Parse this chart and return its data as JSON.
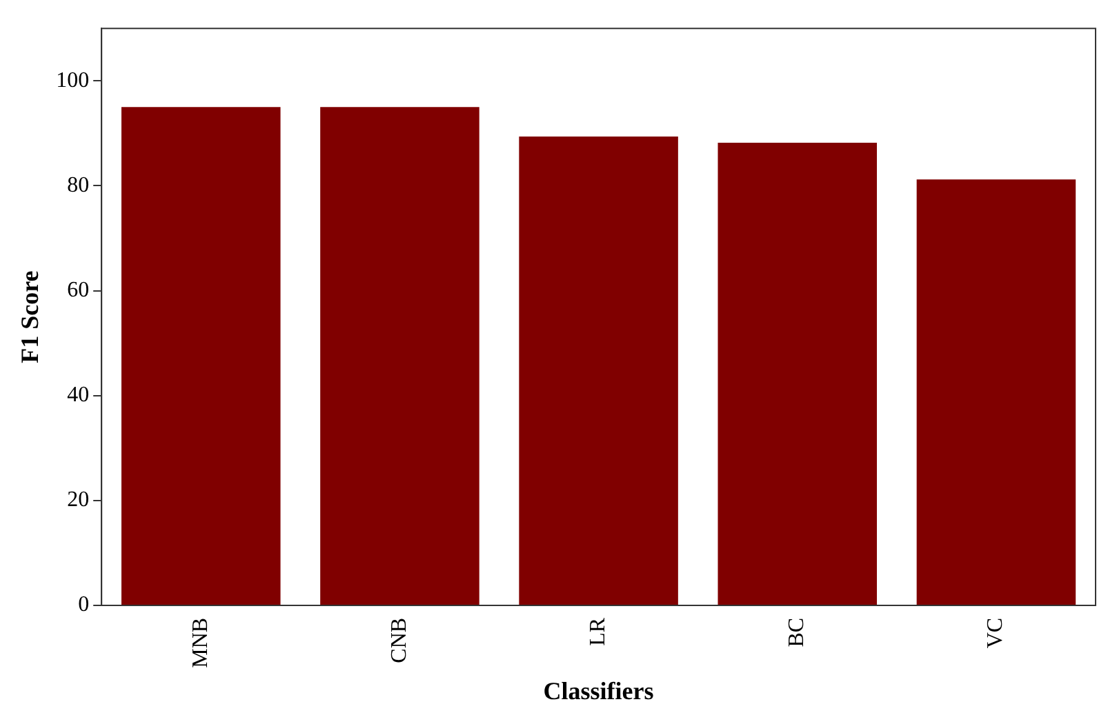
{
  "chart_data": {
    "type": "bar",
    "xlabel": "Classifiers",
    "ylabel": "F1 Score",
    "categories": [
      "MNB",
      "CNB",
      "LR",
      "BC",
      "VC"
    ],
    "values": [
      95.0,
      95.0,
      89.4,
      88.2,
      81.2
    ],
    "color": "#800000",
    "ylim": [
      0,
      110
    ],
    "yticks": [
      0,
      20,
      40,
      60,
      80,
      100
    ],
    "grid": false,
    "legend": false
  }
}
